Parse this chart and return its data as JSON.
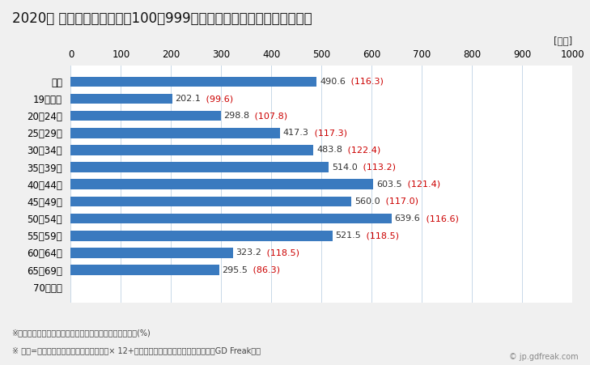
{
  "title": "2020年 民間企業（従業者数100～999人）フルタイム労働者の平均年収",
  "unit_label": "[万円]",
  "categories": [
    "全体",
    "19歳以下",
    "20～24歳",
    "25～29歳",
    "30～34歳",
    "35～39歳",
    "40～44歳",
    "45～49歳",
    "50～54歳",
    "55～59歳",
    "60～64歳",
    "65～69歳",
    "70歳以上"
  ],
  "values": [
    490.6,
    202.1,
    298.8,
    417.3,
    483.8,
    514.0,
    603.5,
    560.0,
    639.6,
    521.5,
    323.2,
    295.5,
    0
  ],
  "ratios": [
    "116.3",
    "99.6",
    "107.8",
    "117.3",
    "122.4",
    "113.2",
    "121.4",
    "117.0",
    "116.6",
    "118.5",
    "118.5",
    "86.3",
    ""
  ],
  "bar_color": "#3a7abf",
  "label_color_value": "#333333",
  "label_color_ratio": "#cc0000",
  "xlim": [
    0,
    1000
  ],
  "xticks": [
    0,
    100,
    200,
    300,
    400,
    500,
    600,
    700,
    800,
    900,
    1000
  ],
  "footnote1": "※（）内は県内の同業種・同年齢層の平均所得に対する比(%)",
  "footnote2": "※ 年収=「きまって支給する現金給与額」× 12+「年間賞与その他特別給与額」としてGD Freak推計",
  "watermark": "© jp.gdfreak.com",
  "background_color": "#f0f0f0",
  "plot_bg_color": "#ffffff",
  "title_fontsize": 12,
  "axis_label_fontsize": 8.5,
  "bar_label_fontsize": 8,
  "footnote_fontsize": 7
}
